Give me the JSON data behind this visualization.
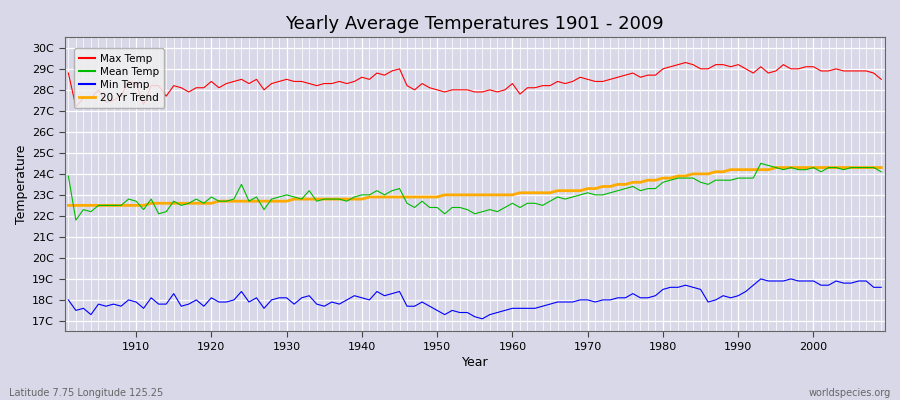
{
  "title": "Yearly Average Temperatures 1901 - 2009",
  "xlabel": "Year",
  "ylabel": "Temperature",
  "x_start": 1901,
  "x_end": 2009,
  "y_ticks": [
    17,
    18,
    19,
    20,
    21,
    22,
    23,
    24,
    25,
    26,
    27,
    28,
    29,
    30
  ],
  "y_labels": [
    "17C",
    "18C",
    "19C",
    "20C",
    "21C",
    "22C",
    "23C",
    "24C",
    "25C",
    "26C",
    "27C",
    "28C",
    "29C",
    "30C"
  ],
  "ylim": [
    16.5,
    30.5
  ],
  "xlim": [
    1900.5,
    2009.5
  ],
  "bg_color": "#d8d8e8",
  "plot_bg_color": "#d8d8e8",
  "grid_color": "#ffffff",
  "colors": {
    "max": "#ff0000",
    "mean": "#00bb00",
    "min": "#0000ff",
    "trend": "#ffaa00"
  },
  "legend_labels": [
    "Max Temp",
    "Mean Temp",
    "Min Temp",
    "20 Yr Trend"
  ],
  "footer_left": "Latitude 7.75 Longitude 125.25",
  "footer_right": "worldspecies.org",
  "max_temp": [
    28.8,
    27.2,
    27.6,
    27.6,
    28.0,
    27.4,
    27.5,
    27.7,
    28.4,
    28.3,
    27.3,
    28.2,
    28.2,
    27.7,
    28.2,
    28.1,
    27.9,
    28.1,
    28.1,
    28.4,
    28.1,
    28.3,
    28.4,
    28.5,
    28.3,
    28.5,
    28.0,
    28.3,
    28.4,
    28.5,
    28.4,
    28.4,
    28.3,
    28.2,
    28.3,
    28.3,
    28.4,
    28.3,
    28.4,
    28.6,
    28.5,
    28.8,
    28.7,
    28.9,
    29.0,
    28.2,
    28.0,
    28.3,
    28.1,
    28.0,
    27.9,
    28.0,
    28.0,
    28.0,
    27.9,
    27.9,
    28.0,
    27.9,
    28.0,
    28.3,
    27.8,
    28.1,
    28.1,
    28.2,
    28.2,
    28.4,
    28.3,
    28.4,
    28.6,
    28.5,
    28.4,
    28.4,
    28.5,
    28.6,
    28.7,
    28.8,
    28.6,
    28.7,
    28.7,
    29.0,
    29.1,
    29.2,
    29.3,
    29.2,
    29.0,
    29.0,
    29.2,
    29.2,
    29.1,
    29.2,
    29.0,
    28.8,
    29.1,
    28.8,
    28.9,
    29.2,
    29.0,
    29.0,
    29.1,
    29.1,
    28.9,
    28.9,
    29.0,
    28.9,
    28.9,
    28.9,
    28.9,
    28.8,
    28.5
  ],
  "mean_temp": [
    23.9,
    21.8,
    22.3,
    22.2,
    22.5,
    22.5,
    22.5,
    22.5,
    22.8,
    22.7,
    22.3,
    22.8,
    22.1,
    22.2,
    22.7,
    22.5,
    22.6,
    22.8,
    22.6,
    22.9,
    22.7,
    22.7,
    22.8,
    23.5,
    22.7,
    22.9,
    22.3,
    22.8,
    22.9,
    23.0,
    22.9,
    22.8,
    23.2,
    22.7,
    22.8,
    22.8,
    22.8,
    22.7,
    22.9,
    23.0,
    23.0,
    23.2,
    23.0,
    23.2,
    23.3,
    22.6,
    22.4,
    22.7,
    22.4,
    22.4,
    22.1,
    22.4,
    22.4,
    22.3,
    22.1,
    22.2,
    22.3,
    22.2,
    22.4,
    22.6,
    22.4,
    22.6,
    22.6,
    22.5,
    22.7,
    22.9,
    22.8,
    22.9,
    23.0,
    23.1,
    23.0,
    23.0,
    23.1,
    23.2,
    23.3,
    23.4,
    23.2,
    23.3,
    23.3,
    23.6,
    23.7,
    23.8,
    23.8,
    23.8,
    23.6,
    23.5,
    23.7,
    23.7,
    23.7,
    23.8,
    23.8,
    23.8,
    24.5,
    24.4,
    24.3,
    24.2,
    24.3,
    24.2,
    24.2,
    24.3,
    24.1,
    24.3,
    24.3,
    24.2,
    24.3,
    24.3,
    24.3,
    24.3,
    24.1
  ],
  "min_temp": [
    18.0,
    17.5,
    17.6,
    17.3,
    17.8,
    17.7,
    17.8,
    17.7,
    18.0,
    17.9,
    17.6,
    18.1,
    17.8,
    17.8,
    18.3,
    17.7,
    17.8,
    18.0,
    17.7,
    18.1,
    17.9,
    17.9,
    18.0,
    18.4,
    17.9,
    18.1,
    17.6,
    18.0,
    18.1,
    18.1,
    17.8,
    18.1,
    18.2,
    17.8,
    17.7,
    17.9,
    17.8,
    18.0,
    18.2,
    18.1,
    18.0,
    18.4,
    18.2,
    18.3,
    18.4,
    17.7,
    17.7,
    17.9,
    17.7,
    17.5,
    17.3,
    17.5,
    17.4,
    17.4,
    17.2,
    17.1,
    17.3,
    17.4,
    17.5,
    17.6,
    17.6,
    17.6,
    17.6,
    17.7,
    17.8,
    17.9,
    17.9,
    17.9,
    18.0,
    18.0,
    17.9,
    18.0,
    18.0,
    18.1,
    18.1,
    18.3,
    18.1,
    18.1,
    18.2,
    18.5,
    18.6,
    18.6,
    18.7,
    18.6,
    18.5,
    17.9,
    18.0,
    18.2,
    18.1,
    18.2,
    18.4,
    18.7,
    19.0,
    18.9,
    18.9,
    18.9,
    19.0,
    18.9,
    18.9,
    18.9,
    18.7,
    18.7,
    18.9,
    18.8,
    18.8,
    18.9,
    18.9,
    18.6,
    18.6
  ],
  "trend": [
    22.5,
    22.5,
    22.5,
    22.5,
    22.5,
    22.5,
    22.5,
    22.5,
    22.5,
    22.5,
    22.5,
    22.6,
    22.6,
    22.6,
    22.6,
    22.6,
    22.6,
    22.6,
    22.6,
    22.6,
    22.7,
    22.7,
    22.7,
    22.7,
    22.7,
    22.7,
    22.7,
    22.7,
    22.7,
    22.7,
    22.8,
    22.8,
    22.8,
    22.8,
    22.8,
    22.8,
    22.8,
    22.8,
    22.8,
    22.8,
    22.9,
    22.9,
    22.9,
    22.9,
    22.9,
    22.9,
    22.9,
    22.9,
    22.9,
    22.9,
    23.0,
    23.0,
    23.0,
    23.0,
    23.0,
    23.0,
    23.0,
    23.0,
    23.0,
    23.0,
    23.1,
    23.1,
    23.1,
    23.1,
    23.1,
    23.2,
    23.2,
    23.2,
    23.2,
    23.3,
    23.3,
    23.4,
    23.4,
    23.5,
    23.5,
    23.6,
    23.6,
    23.7,
    23.7,
    23.8,
    23.8,
    23.9,
    23.9,
    24.0,
    24.0,
    24.0,
    24.1,
    24.1,
    24.2,
    24.2,
    24.2,
    24.2,
    24.2,
    24.2,
    24.3,
    24.3,
    24.3,
    24.3,
    24.3,
    24.3,
    24.3,
    24.3,
    24.3,
    24.3,
    24.3,
    24.3,
    24.3,
    24.3,
    24.3
  ]
}
